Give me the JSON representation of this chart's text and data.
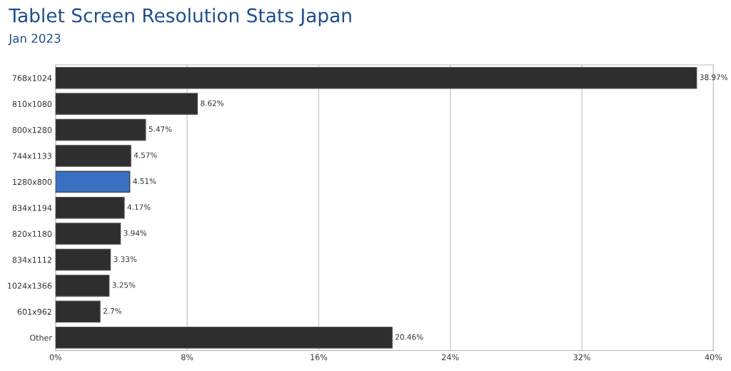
{
  "chart_data": {
    "type": "bar",
    "orientation": "horizontal",
    "title": "Tablet Screen Resolution Stats Japan",
    "subtitle": "Jan 2023",
    "categories": [
      "768x1024",
      "810x1080",
      "800x1280",
      "744x1133",
      "1280x800",
      "834x1194",
      "820x1180",
      "834x1112",
      "1024x1366",
      "601x962",
      "Other"
    ],
    "values": [
      38.97,
      8.62,
      5.47,
      4.57,
      4.51,
      4.17,
      3.94,
      3.33,
      3.25,
      2.7,
      20.46
    ],
    "value_labels": [
      "38.97%",
      "8.62%",
      "5.47%",
      "4.57%",
      "4.51%",
      "4.17%",
      "3.94%",
      "3.33%",
      "3.25%",
      "2.7%",
      "20.46%"
    ],
    "colors": [
      "#2e2e2e",
      "#2e2e2e",
      "#2e2e2e",
      "#2e2e2e",
      "#3a6fc4",
      "#2e2e2e",
      "#2e2e2e",
      "#2e2e2e",
      "#2e2e2e",
      "#2e2e2e",
      "#2e2e2e"
    ],
    "xlim": [
      0,
      40
    ],
    "xticks": [
      {
        "value": 0,
        "label": "0%"
      },
      {
        "value": 8,
        "label": "8%"
      },
      {
        "value": 16,
        "label": "16%"
      },
      {
        "value": 24,
        "label": "24%"
      },
      {
        "value": 32,
        "label": "32%"
      },
      {
        "value": 40,
        "label": "40%"
      }
    ],
    "grid": "x"
  }
}
